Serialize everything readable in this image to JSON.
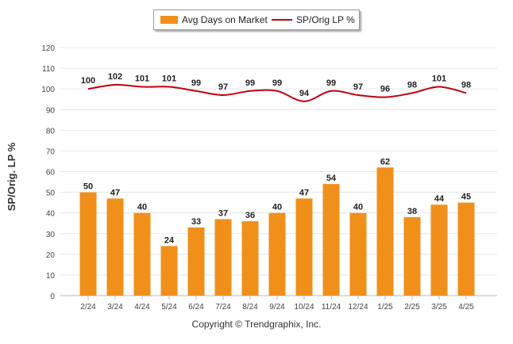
{
  "legend": {
    "bar_label": "Avg Days on Market",
    "line_label": "SP/Orig LP %"
  },
  "copyright": "Copyright © Trendgraphix, Inc.",
  "chart_data": {
    "type": "bar",
    "ylabel": "SP/Orig. LP %",
    "ylim": [
      0,
      120
    ],
    "yticks": [
      0,
      10,
      20,
      30,
      40,
      50,
      60,
      70,
      80,
      90,
      100,
      110,
      120
    ],
    "grid": true,
    "legend_position": "top-center",
    "categories": [
      "2/24",
      "3/24",
      "4/24",
      "5/24",
      "6/24",
      "7/24",
      "8/24",
      "9/24",
      "10/24",
      "11/24",
      "12/24",
      "1/25",
      "2/25",
      "3/25",
      "4/25"
    ],
    "series": [
      {
        "name": "Avg Days on Market",
        "type": "bar",
        "color": "#f0901a",
        "values": [
          50,
          47,
          40,
          24,
          33,
          37,
          36,
          40,
          47,
          54,
          40,
          62,
          38,
          44,
          45
        ]
      },
      {
        "name": "SP/Orig LP %",
        "type": "line",
        "color": "#c0000f",
        "values": [
          100,
          102,
          101,
          101,
          99,
          97,
          99,
          99,
          94,
          99,
          97,
          96,
          98,
          101,
          98
        ]
      }
    ]
  }
}
